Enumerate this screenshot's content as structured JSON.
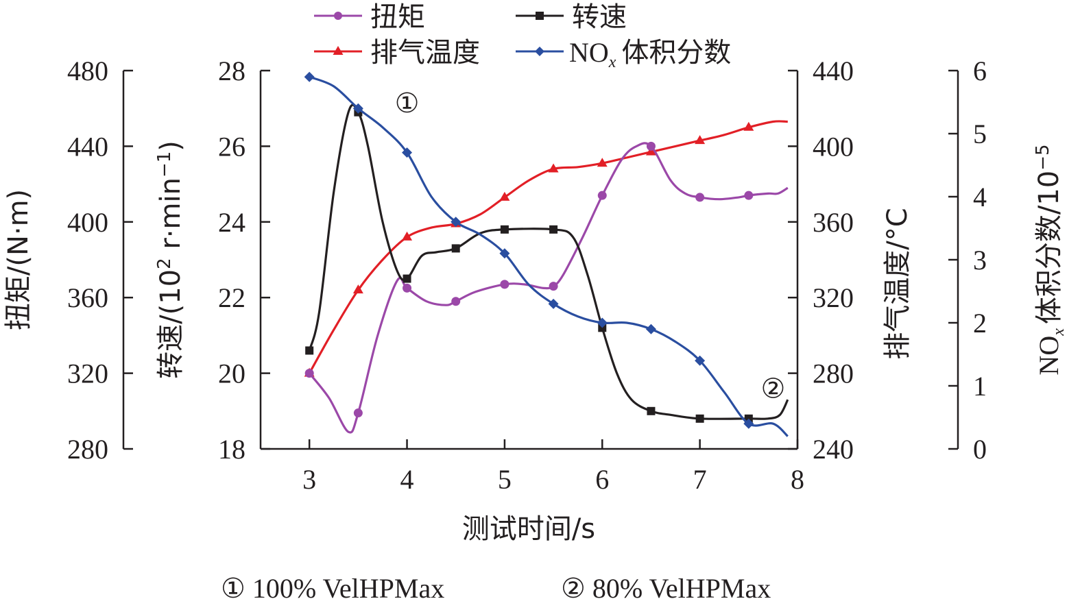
{
  "chart_data": {
    "type": "line",
    "x": [
      3,
      3.5,
      4,
      4.5,
      5,
      5.5,
      6,
      6.5,
      7,
      7.5
    ],
    "xlabel": "测试时间/s",
    "xlim": [
      2.5,
      8
    ],
    "xticks": [
      3,
      4,
      5,
      6,
      7,
      8
    ],
    "axes": {
      "torque": {
        "label": "扭矩/(N·m)",
        "range": [
          280,
          480
        ],
        "ticks": [
          280,
          320,
          360,
          400,
          440,
          480
        ]
      },
      "speed": {
        "label": "转速/(10² r·min⁻¹)",
        "range": [
          18,
          28
        ],
        "ticks": [
          18,
          20,
          22,
          24,
          26,
          28
        ]
      },
      "exhaust": {
        "label": "排气温度/°C",
        "range": [
          240,
          440
        ],
        "ticks": [
          240,
          280,
          320,
          360,
          400,
          440
        ]
      },
      "nox": {
        "label": "NOx 体积分数/10⁻⁵",
        "range": [
          0,
          6
        ],
        "ticks": [
          0,
          1,
          2,
          3,
          4,
          5,
          6
        ]
      }
    },
    "series": [
      {
        "name": "扭矩",
        "axis": "torque",
        "color": "#9b48a8",
        "marker": "circle",
        "values": [
          320,
          299,
          365,
          358,
          367,
          366,
          414,
          440,
          413,
          414
        ],
        "curve": [
          [
            3,
            320
          ],
          [
            3.2,
            307
          ],
          [
            3.4,
            289
          ],
          [
            3.5,
            299
          ],
          [
            3.7,
            340
          ],
          [
            3.9,
            369
          ],
          [
            4,
            365
          ],
          [
            4.2,
            358
          ],
          [
            4.4,
            356
          ],
          [
            4.5,
            358
          ],
          [
            4.7,
            363
          ],
          [
            5,
            367
          ],
          [
            5.2,
            367
          ],
          [
            5.4,
            365
          ],
          [
            5.5,
            366
          ],
          [
            5.6,
            372
          ],
          [
            5.8,
            392
          ],
          [
            6,
            414
          ],
          [
            6.2,
            433
          ],
          [
            6.35,
            440
          ],
          [
            6.5,
            440
          ],
          [
            6.7,
            422
          ],
          [
            6.85,
            415
          ],
          [
            7,
            413
          ],
          [
            7.2,
            412
          ],
          [
            7.4,
            413
          ],
          [
            7.5,
            414
          ],
          [
            7.7,
            415
          ],
          [
            7.8,
            415
          ],
          [
            7.9,
            418
          ]
        ]
      },
      {
        "name": "转速",
        "axis": "speed",
        "color": "#231f20",
        "marker": "square",
        "values": [
          20.6,
          26.9,
          22.5,
          23.3,
          23.8,
          23.8,
          21.2,
          19.0,
          18.8,
          18.8
        ],
        "curve": [
          [
            3,
            20.6
          ],
          [
            3.1,
            21.6
          ],
          [
            3.25,
            24.8
          ],
          [
            3.4,
            26.9
          ],
          [
            3.5,
            26.9
          ],
          [
            3.6,
            26.0
          ],
          [
            3.75,
            24.0
          ],
          [
            3.9,
            22.7
          ],
          [
            4,
            22.5
          ],
          [
            4.15,
            23.1
          ],
          [
            4.3,
            23.2
          ],
          [
            4.5,
            23.3
          ],
          [
            4.75,
            23.7
          ],
          [
            5,
            23.8
          ],
          [
            5.5,
            23.8
          ],
          [
            5.7,
            23.6
          ],
          [
            5.85,
            22.6
          ],
          [
            6,
            21.2
          ],
          [
            6.15,
            20.0
          ],
          [
            6.3,
            19.3
          ],
          [
            6.5,
            19.0
          ],
          [
            6.7,
            18.9
          ],
          [
            7,
            18.8
          ],
          [
            7.5,
            18.8
          ],
          [
            7.7,
            18.8
          ],
          [
            7.82,
            18.9
          ],
          [
            7.9,
            19.3
          ]
        ]
      },
      {
        "name": "排气温度",
        "axis": "exhaust",
        "color": "#e21f26",
        "marker": "triangle",
        "values": [
          280,
          324,
          352,
          359,
          373,
          388,
          391,
          397,
          403,
          410
        ],
        "curve": [
          [
            3,
            280
          ],
          [
            3.25,
            303
          ],
          [
            3.5,
            324
          ],
          [
            3.75,
            340
          ],
          [
            4,
            352
          ],
          [
            4.25,
            357
          ],
          [
            4.5,
            359
          ],
          [
            4.75,
            364
          ],
          [
            5,
            373
          ],
          [
            5.25,
            382
          ],
          [
            5.5,
            388
          ],
          [
            5.75,
            389
          ],
          [
            6,
            391
          ],
          [
            6.25,
            394
          ],
          [
            6.5,
            397
          ],
          [
            6.75,
            400
          ],
          [
            7,
            403
          ],
          [
            7.25,
            406
          ],
          [
            7.5,
            410
          ],
          [
            7.75,
            413
          ],
          [
            7.9,
            413
          ]
        ]
      },
      {
        "name": "NOx 体积分数",
        "axis": "nox",
        "color": "#2a4ea0",
        "marker": "diamond",
        "values": [
          5.9,
          5.4,
          4.7,
          3.6,
          3.1,
          2.3,
          2.0,
          1.9,
          1.4,
          0.4
        ],
        "curve": [
          [
            3,
            5.9
          ],
          [
            3.25,
            5.75
          ],
          [
            3.5,
            5.4
          ],
          [
            3.75,
            5.1
          ],
          [
            4,
            4.7
          ],
          [
            4.25,
            4.0
          ],
          [
            4.5,
            3.6
          ],
          [
            4.75,
            3.4
          ],
          [
            5,
            3.1
          ],
          [
            5.25,
            2.6
          ],
          [
            5.5,
            2.3
          ],
          [
            5.75,
            2.1
          ],
          [
            6,
            2.0
          ],
          [
            6.25,
            2.0
          ],
          [
            6.5,
            1.9
          ],
          [
            6.75,
            1.7
          ],
          [
            7,
            1.4
          ],
          [
            7.25,
            0.9
          ],
          [
            7.5,
            0.4
          ],
          [
            7.75,
            0.4
          ],
          [
            7.9,
            0.2
          ]
        ]
      }
    ],
    "annotations": [
      {
        "text": "①",
        "x": 4.0,
        "axis": "speed",
        "y": 27.15
      },
      {
        "text": "②",
        "x": 7.75,
        "axis": "speed",
        "y": 19.6
      }
    ],
    "footer": [
      "① 100% VelHPMax",
      "② 80% VelHPMax"
    ]
  }
}
